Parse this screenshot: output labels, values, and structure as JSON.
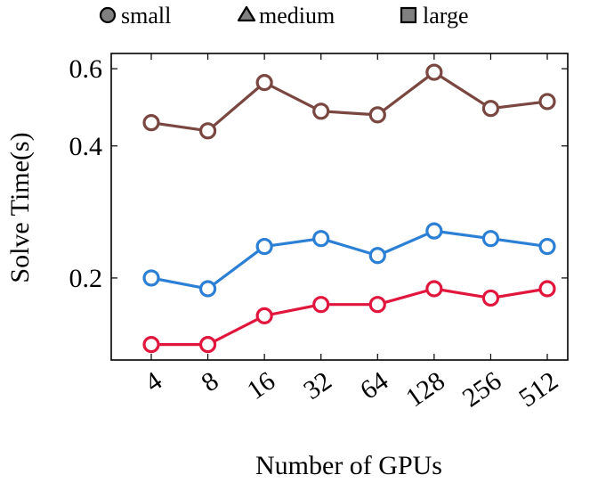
{
  "chart_data": {
    "type": "line",
    "title": "",
    "xlabel": "Number of GPUs",
    "ylabel": "Solve Time(s)",
    "y_scale": "log",
    "ylim": [
      0.13,
      0.65
    ],
    "yticks": [
      0.2,
      0.4,
      0.6
    ],
    "ytick_labels": [
      "0.2",
      "0.4",
      "0.6"
    ],
    "categories": [
      "4",
      "8",
      "16",
      "32",
      "64",
      "128",
      "256",
      "512"
    ],
    "legend": {
      "placement": "top",
      "entries": [
        {
          "label": "small",
          "marker": "circle"
        },
        {
          "label": "medium",
          "marker": "triangle"
        },
        {
          "label": "large",
          "marker": "square"
        }
      ]
    },
    "series": [
      {
        "name": "series-brown",
        "color": "#7a4640",
        "values": [
          0.452,
          0.433,
          0.558,
          0.48,
          0.471,
          0.589,
          0.487,
          0.505
        ]
      },
      {
        "name": "series-blue",
        "color": "#2b7fd4",
        "values": [
          0.2,
          0.189,
          0.236,
          0.246,
          0.225,
          0.256,
          0.246,
          0.236
        ]
      },
      {
        "name": "series-red",
        "color": "#e0163d",
        "values": [
          0.141,
          0.141,
          0.164,
          0.174,
          0.174,
          0.189,
          0.18,
          0.189
        ]
      }
    ]
  }
}
